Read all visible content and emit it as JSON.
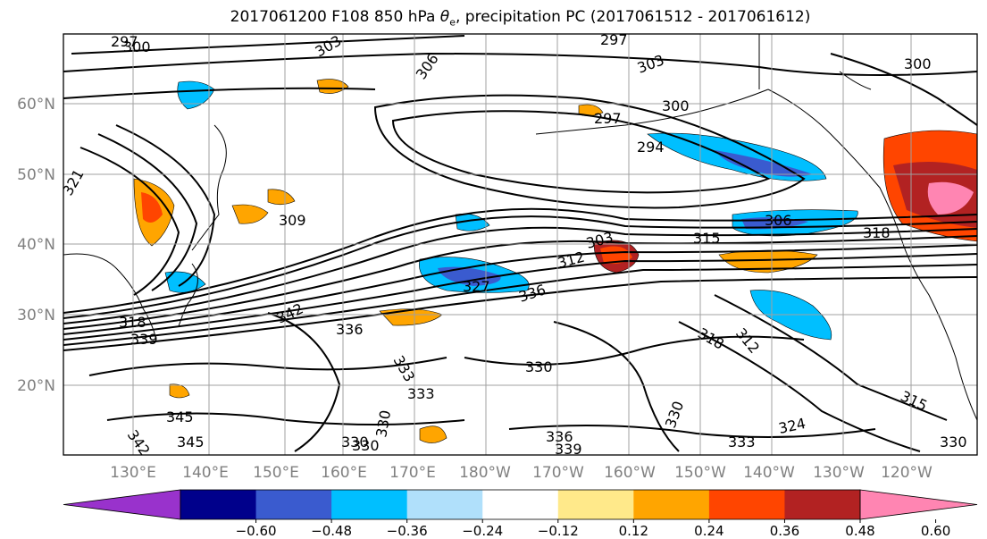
{
  "title": {
    "prefix": "2017061200 F108 850 hPa ",
    "theta": "θ",
    "sub": "e",
    "suffix": ", precipitation PC (2017061512 - 2017061612)"
  },
  "map": {
    "lon_labels": [
      "130°E",
      "140°E",
      "150°E",
      "160°E",
      "170°E",
      "180°W",
      "170°W",
      "160°W",
      "150°W",
      "140°W",
      "130°W",
      "120°W"
    ],
    "lat_labels": [
      "60°N",
      "50°N",
      "40°N",
      "30°N",
      "20°N"
    ],
    "contour_labels": [
      "297",
      "300",
      "303",
      "306",
      "297",
      "300",
      "303",
      "300",
      "297",
      "294",
      "321",
      "309",
      "303",
      "315",
      "312",
      "306",
      "318",
      "327",
      "336",
      "342",
      "318",
      "339",
      "336",
      "330",
      "318",
      "312",
      "315",
      "333",
      "333",
      "345",
      "345",
      "342",
      "336",
      "339",
      "333",
      "324",
      "330",
      "330",
      "330",
      "330",
      "330"
    ]
  },
  "colorbar": {
    "colors": [
      "#9932cc",
      "#00008b",
      "#3a5bcf",
      "#00bfff",
      "#b0e0fb",
      "#ffffff",
      "#ffe98a",
      "#ffa500",
      "#ff4500",
      "#b22222",
      "#ff85b2"
    ],
    "tick_labels": [
      "−0.60",
      "−0.48",
      "−0.36",
      "−0.24",
      "−0.12",
      "0.12",
      "0.24",
      "0.36",
      "0.48",
      "0.60"
    ]
  },
  "colors": {
    "contour": "#000000",
    "grid": "#a0a0a0",
    "coast": "#000000",
    "axis_label": "#808080"
  }
}
